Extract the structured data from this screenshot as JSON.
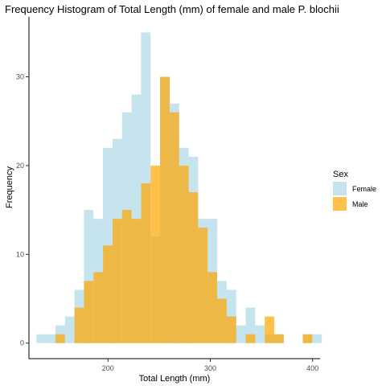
{
  "chart_data": {
    "type": "bar",
    "title": "Frequency Histogram of Total Length (mm) of female and male P. blochii",
    "xlabel": "Total Length (mm)",
    "ylabel": "Frequency",
    "xlim": [
      122.7,
      407.3
    ],
    "ylim": [
      -1.75,
      36.75
    ],
    "xticks": [
      200,
      300,
      400
    ],
    "yticks": [
      0,
      10,
      20,
      30
    ],
    "grid": false,
    "legend": {
      "title": "Sex",
      "position": "right"
    },
    "bin_width": 9.3,
    "bin_starts": [
      130.0,
      139.3,
      148.6,
      157.9,
      167.2,
      176.5,
      185.8,
      195.1,
      204.4,
      213.7,
      223.0,
      232.3,
      241.6,
      250.9,
      260.2,
      269.5,
      278.8,
      288.1,
      297.4,
      306.7,
      316.0,
      325.3,
      334.6,
      343.9,
      353.2,
      362.5,
      371.8,
      381.1,
      390.4,
      399.7
    ],
    "series": [
      {
        "name": "Female",
        "color": "#add8e6",
        "opacity": 0.7,
        "values": [
          1,
          1,
          2,
          3,
          6,
          15,
          14,
          22,
          23,
          26,
          28,
          35,
          12,
          30,
          27,
          22,
          21,
          14,
          14,
          7,
          6,
          2,
          4,
          2,
          1,
          1,
          0,
          0,
          1,
          1
        ]
      },
      {
        "name": "Male",
        "color": "#ffa500",
        "opacity": 0.7,
        "values": [
          0,
          0,
          1,
          0,
          4,
          7,
          8,
          11,
          14,
          15,
          14,
          18,
          20,
          30,
          26,
          20,
          17,
          13,
          8,
          5,
          3,
          0,
          1,
          0,
          3,
          1,
          0,
          0,
          1,
          0
        ]
      }
    ]
  }
}
